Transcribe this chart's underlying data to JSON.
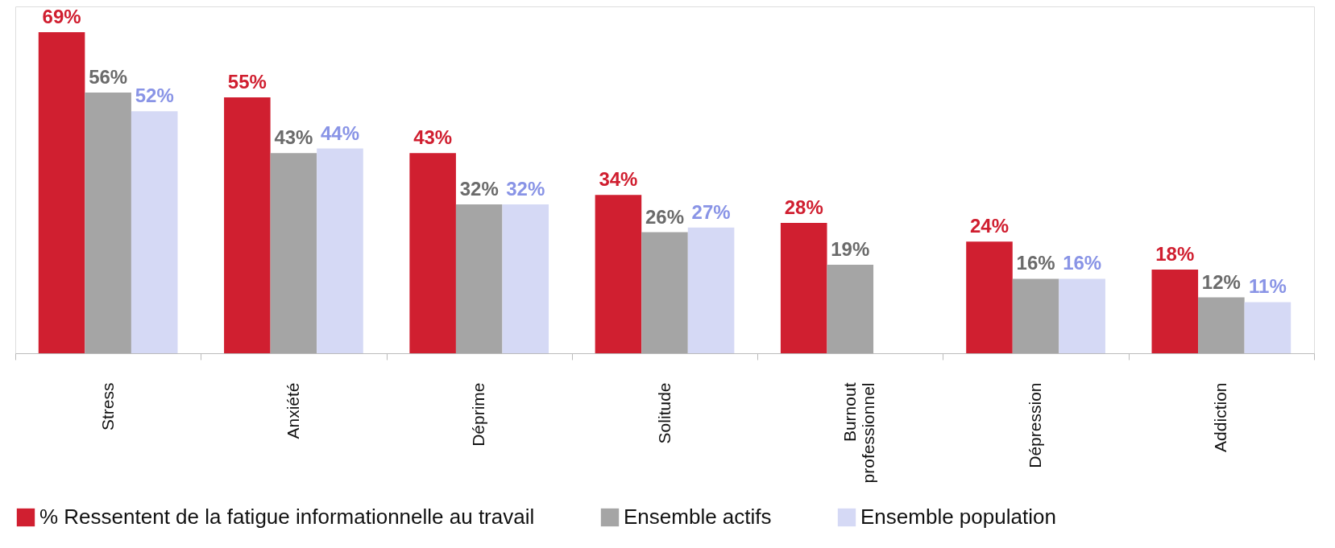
{
  "chart_data": {
    "type": "bar",
    "categories": [
      "Stress",
      "Anxiété",
      "Déprime",
      "Solitude",
      "Burnout professionnel",
      "Dépression",
      "Addiction"
    ],
    "series": [
      {
        "name": "% Ressentent de la fatigue informationnelle au travail",
        "color": "#d01f30",
        "values": [
          69,
          55,
          43,
          34,
          28,
          24,
          18
        ],
        "value_labels": [
          "69%",
          "55%",
          "43%",
          "34%",
          "28%",
          "24%",
          "18%"
        ]
      },
      {
        "name": "Ensemble actifs",
        "color": "#a5a5a5",
        "values": [
          56,
          43,
          32,
          26,
          19,
          16,
          12
        ],
        "value_labels": [
          "56%",
          "43%",
          "32%",
          "26%",
          "19%",
          "16%",
          "12%"
        ]
      },
      {
        "name": "Ensemble population",
        "color": "#d5d9f5",
        "values": [
          52,
          44,
          32,
          27,
          null,
          16,
          11
        ],
        "value_labels": [
          "52%",
          "44%",
          "32%",
          "27%",
          null,
          "16%",
          "11%"
        ]
      }
    ],
    "legend": "bottom",
    "grid": false
  }
}
